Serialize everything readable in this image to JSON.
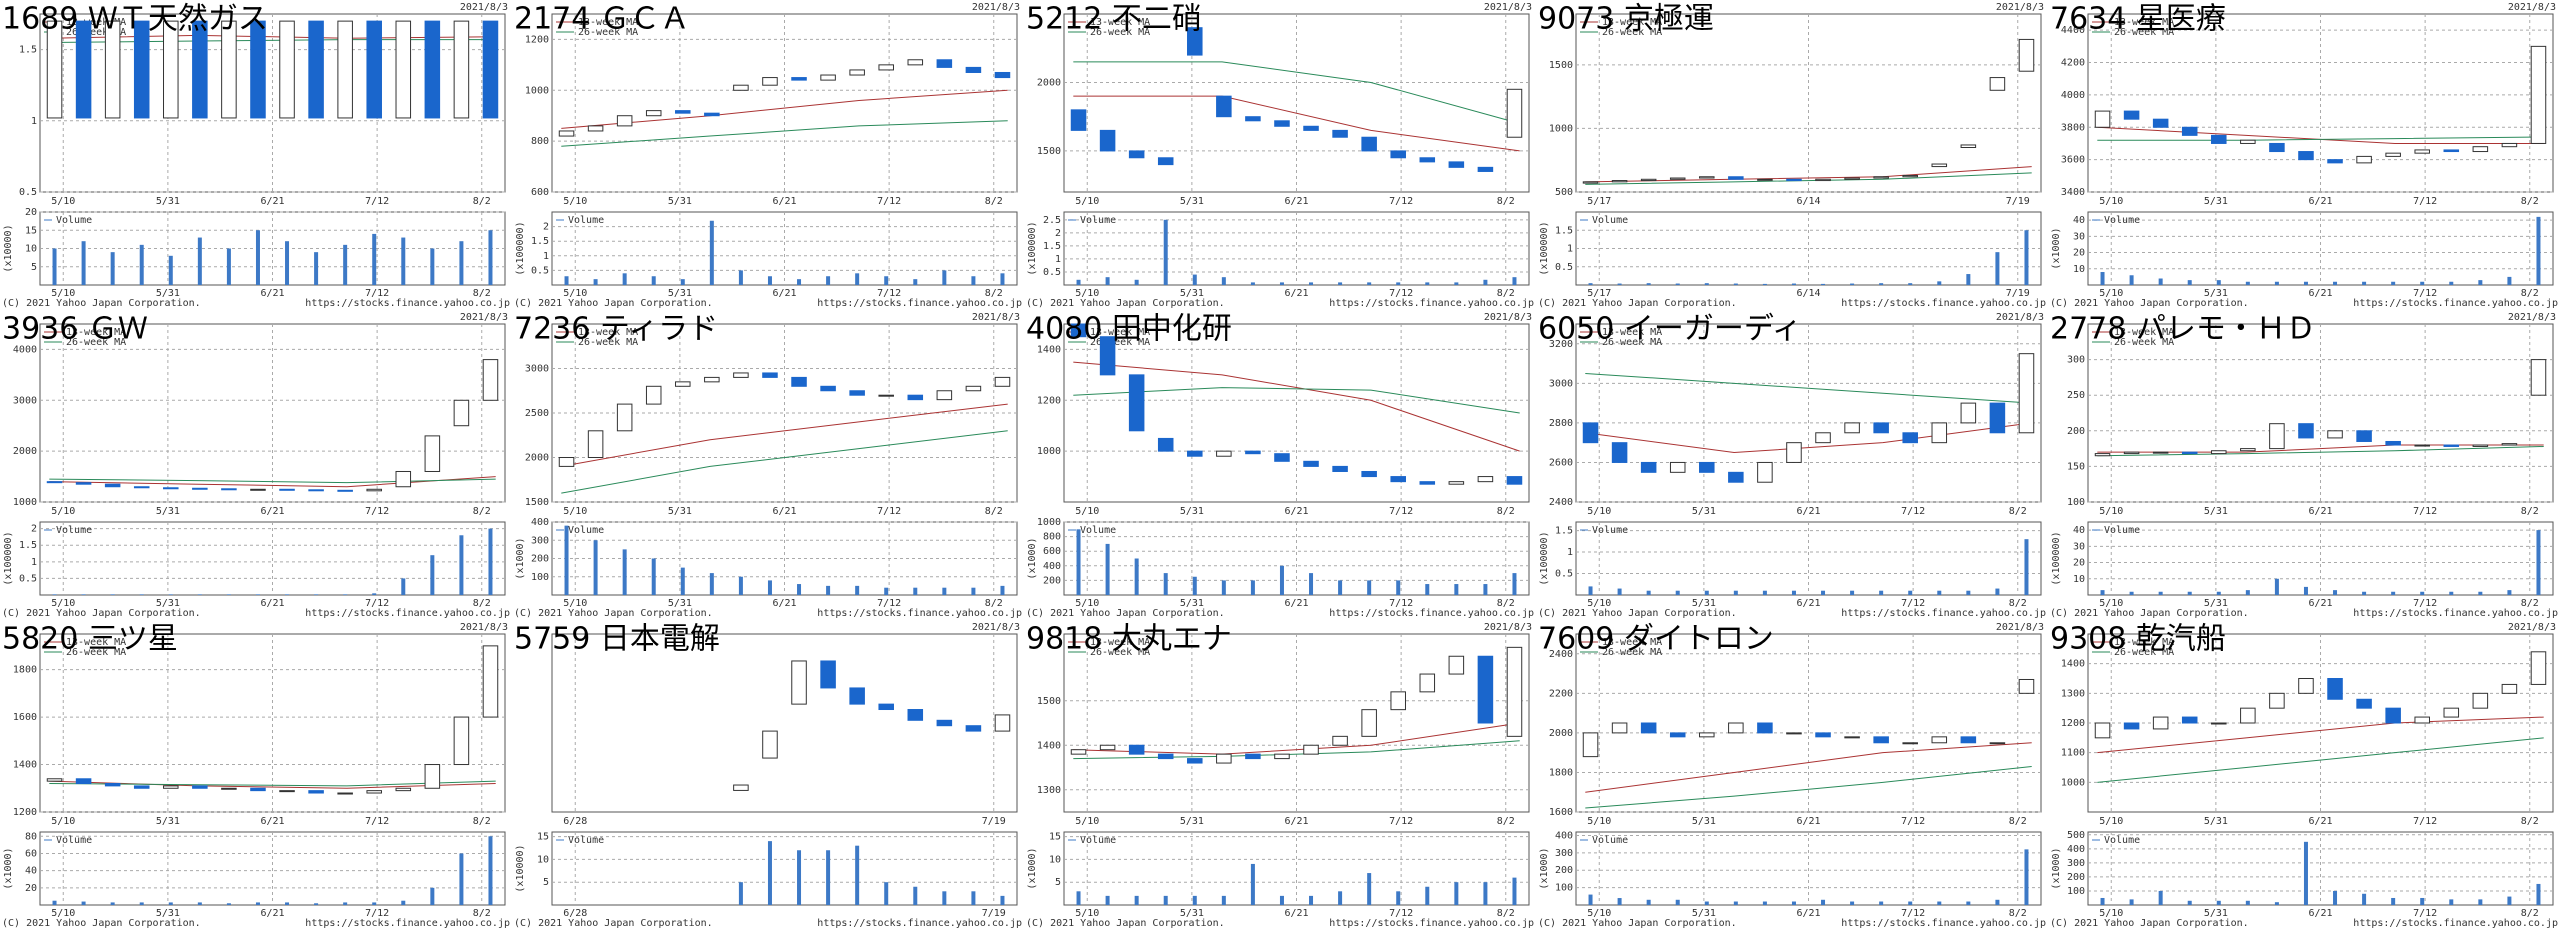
{
  "date": "2021/8/3",
  "copyright": "(C) 2021 Yahoo Japan Corporation.",
  "source": "https://stocks.finance.yahoo.co.jp",
  "legend": [
    "13-week MA",
    "26-week MA",
    "Volume"
  ],
  "chart_data": [
    {
      "type": "candlestick",
      "title": "1689 ＷＴ天然ガス",
      "x_labels": [
        "5/10",
        "5/31",
        "6/21",
        "7/12",
        "8/2"
      ],
      "ylim": [
        0.5,
        1.75
      ],
      "yticks": [
        0.5,
        1,
        1.5
      ],
      "open": [
        1.02,
        1.7,
        1.02,
        1.7,
        1.02,
        1.7,
        1.02,
        1.7,
        1.02,
        1.7,
        1.02,
        1.7,
        1.02,
        1.7,
        1.02,
        1.7
      ],
      "close": [
        1.7,
        1.02,
        1.7,
        1.02,
        1.7,
        1.02,
        1.7,
        1.02,
        1.7,
        1.02,
        1.7,
        1.02,
        1.7,
        1.02,
        1.7,
        1.02
      ],
      "ma13": [
        1.58,
        1.6,
        1.58,
        1.59
      ],
      "ma26": [
        1.55,
        1.56,
        1.57,
        1.57
      ],
      "vunit": "(x10000)",
      "vlim": [
        0,
        20
      ],
      "vticks": [
        5,
        10,
        15,
        20
      ],
      "volume": [
        10,
        12,
        9,
        11,
        8,
        13,
        10,
        15,
        12,
        9,
        11,
        14,
        13,
        10,
        12,
        15
      ]
    },
    {
      "type": "candlestick",
      "title": "2174 ＧＣＡ",
      "x_labels": [
        "5/10",
        "5/31",
        "6/21",
        "7/12",
        "8/2"
      ],
      "ylim": [
        600,
        1300
      ],
      "yticks": [
        600,
        800,
        1000,
        1200
      ],
      "open": [
        820,
        840,
        860,
        900,
        920,
        910,
        1000,
        1020,
        1050,
        1040,
        1060,
        1080,
        1100,
        1120,
        1090,
        1070
      ],
      "close": [
        840,
        860,
        900,
        920,
        910,
        900,
        1020,
        1050,
        1040,
        1060,
        1080,
        1100,
        1120,
        1090,
        1070,
        1050
      ],
      "ma13": [
        850,
        900,
        960,
        1000
      ],
      "ma26": [
        780,
        820,
        860,
        880
      ],
      "vunit": "(x100000)",
      "vlim": [
        0,
        2.5
      ],
      "vticks": [
        0.5,
        1,
        1.5,
        2
      ],
      "volume": [
        0.3,
        0.2,
        0.4,
        0.3,
        0.2,
        2.2,
        0.5,
        0.3,
        0.2,
        0.3,
        0.4,
        0.3,
        0.2,
        0.5,
        0.3,
        0.4
      ]
    },
    {
      "type": "candlestick",
      "title": "5212 不二硝",
      "x_labels": [
        "5/10",
        "5/31",
        "6/21",
        "7/12",
        "8/2"
      ],
      "ylim": [
        1200,
        2500
      ],
      "yticks": [
        1500,
        2000
      ],
      "open": [
        1800,
        1650,
        1500,
        1450,
        2400,
        1900,
        1750,
        1720,
        1680,
        1650,
        1600,
        1500,
        1450,
        1420,
        1380,
        1600
      ],
      "close": [
        1650,
        1500,
        1450,
        1400,
        2200,
        1750,
        1720,
        1680,
        1650,
        1600,
        1500,
        1450,
        1420,
        1380,
        1350,
        1950
      ],
      "ma13": [
        1900,
        1900,
        1650,
        1500
      ],
      "ma26": [
        2150,
        2150,
        2000,
        1700
      ],
      "vunit": "(x100000)",
      "vlim": [
        0,
        2.8
      ],
      "vticks": [
        0.5,
        1,
        1.5,
        2,
        2.5
      ],
      "volume": [
        0.2,
        0.3,
        0.2,
        2.5,
        0.4,
        0.3,
        0.1,
        0.1,
        0.1,
        0.1,
        0.1,
        0.1,
        0.1,
        0.1,
        0.2,
        0.3
      ]
    },
    {
      "type": "candlestick",
      "title": "9073 京極運",
      "x_labels": [
        "5/17",
        "6/14",
        "7/19"
      ],
      "ylim": [
        500,
        1900
      ],
      "yticks": [
        500,
        1000,
        1500
      ],
      "open": [
        570,
        580,
        590,
        600,
        610,
        620,
        600,
        600,
        590,
        600,
        610,
        620,
        700,
        850,
        1300,
        1450
      ],
      "close": [
        580,
        590,
        600,
        610,
        620,
        600,
        600,
        590,
        600,
        610,
        620,
        630,
        720,
        870,
        1400,
        1700
      ],
      "ma13": [
        580,
        600,
        620,
        700
      ],
      "ma26": [
        560,
        580,
        600,
        650
      ],
      "vunit": "(x100000)",
      "vlim": [
        0,
        2
      ],
      "vticks": [
        0.5,
        1,
        1.5
      ],
      "volume": [
        0.05,
        0.04,
        0.05,
        0.04,
        0.05,
        0.04,
        0.03,
        0.04,
        0.03,
        0.04,
        0.05,
        0.05,
        0.1,
        0.3,
        0.9,
        1.5
      ]
    },
    {
      "type": "candlestick",
      "title": "7634 星医療",
      "x_labels": [
        "5/10",
        "5/31",
        "6/21",
        "7/12",
        "8/2"
      ],
      "ylim": [
        3400,
        4500
      ],
      "yticks": [
        3400,
        3600,
        3800,
        4000,
        4200,
        4400
      ],
      "open": [
        3800,
        3900,
        3850,
        3800,
        3750,
        3700,
        3700,
        3650,
        3600,
        3580,
        3620,
        3640,
        3660,
        3650,
        3680,
        3700
      ],
      "close": [
        3900,
        3850,
        3800,
        3750,
        3700,
        3720,
        3650,
        3600,
        3580,
        3620,
        3640,
        3660,
        3650,
        3680,
        3700,
        4300
      ],
      "ma13": [
        3800,
        3750,
        3700,
        3700
      ],
      "ma26": [
        3720,
        3720,
        3730,
        3740
      ],
      "vunit": "(x1000)",
      "vlim": [
        0,
        45
      ],
      "vticks": [
        10,
        20,
        30,
        40
      ],
      "volume": [
        8,
        6,
        4,
        3,
        3,
        2,
        2,
        2,
        2,
        2,
        2,
        2,
        2,
        3,
        5,
        42
      ]
    },
    {
      "type": "candlestick",
      "title": "3936 ＧＷ",
      "x_labels": [
        "5/10",
        "5/31",
        "6/21",
        "7/12",
        "8/2"
      ],
      "ylim": [
        1000,
        4500
      ],
      "yticks": [
        1000,
        2000,
        3000,
        4000
      ],
      "open": [
        1400,
        1380,
        1350,
        1300,
        1280,
        1270,
        1260,
        1250,
        1250,
        1240,
        1230,
        1220,
        1300,
        1600,
        2500,
        3000
      ],
      "close": [
        1380,
        1350,
        1300,
        1280,
        1270,
        1260,
        1250,
        1250,
        1240,
        1230,
        1220,
        1250,
        1600,
        2300,
        3000,
        3800
      ],
      "ma13": [
        1400,
        1350,
        1300,
        1500
      ],
      "ma26": [
        1450,
        1420,
        1380,
        1450
      ],
      "vunit": "(x100000)",
      "vlim": [
        0,
        2.2
      ],
      "vticks": [
        0.5,
        1,
        1.5,
        2
      ],
      "volume": [
        0.02,
        0.02,
        0.02,
        0.02,
        0.02,
        0.02,
        0.02,
        0.02,
        0.02,
        0.02,
        0.02,
        0.05,
        0.5,
        1.2,
        1.8,
        2
      ]
    },
    {
      "type": "candlestick",
      "title": "7236 ティラド",
      "x_labels": [
        "5/10",
        "5/31",
        "6/21",
        "7/12",
        "8/2"
      ],
      "ylim": [
        1500,
        3500
      ],
      "yticks": [
        1500,
        2000,
        2500,
        3000
      ],
      "open": [
        1900,
        2000,
        2300,
        2600,
        2800,
        2850,
        2900,
        2950,
        2900,
        2800,
        2750,
        2700,
        2700,
        2650,
        2750,
        2800
      ],
      "close": [
        2000,
        2300,
        2600,
        2800,
        2850,
        2900,
        2950,
        2900,
        2800,
        2750,
        2700,
        2700,
        2650,
        2750,
        2800,
        2900
      ],
      "ma13": [
        1900,
        2200,
        2400,
        2600
      ],
      "ma26": [
        1600,
        1900,
        2100,
        2300
      ],
      "vunit": "(x1000)",
      "vlim": [
        0,
        400
      ],
      "vticks": [
        100,
        200,
        300,
        400
      ],
      "volume": [
        380,
        300,
        250,
        200,
        150,
        120,
        100,
        80,
        60,
        50,
        50,
        40,
        40,
        40,
        40,
        50
      ]
    },
    {
      "type": "candlestick",
      "title": "4080 田中化研",
      "x_labels": [
        "5/10",
        "5/31",
        "6/21",
        "7/12",
        "8/2"
      ],
      "ylim": [
        800,
        1500
      ],
      "yticks": [
        1000,
        1200,
        1400
      ],
      "open": [
        1500,
        1450,
        1300,
        1050,
        1000,
        980,
        1000,
        990,
        960,
        940,
        920,
        900,
        880,
        870,
        880,
        900
      ],
      "close": [
        1450,
        1300,
        1080,
        1000,
        980,
        1000,
        990,
        960,
        940,
        920,
        900,
        880,
        870,
        880,
        900,
        870
      ],
      "ma13": [
        1350,
        1300,
        1200,
        1000
      ],
      "ma26": [
        1220,
        1250,
        1240,
        1150
      ],
      "vunit": "(x1000)",
      "vlim": [
        0,
        1000
      ],
      "vticks": [
        200,
        400,
        600,
        800,
        1000
      ],
      "volume": [
        900,
        700,
        500,
        300,
        250,
        200,
        200,
        400,
        300,
        200,
        200,
        200,
        150,
        150,
        150,
        300
      ]
    },
    {
      "type": "candlestick",
      "title": "6050 イーガーディ",
      "x_labels": [
        "5/10",
        "5/31",
        "6/21",
        "7/12",
        "8/2"
      ],
      "ylim": [
        2400,
        3300
      ],
      "yticks": [
        2400,
        2600,
        2800,
        3000,
        3200
      ],
      "open": [
        2800,
        2700,
        2600,
        2550,
        2600,
        2550,
        2500,
        2600,
        2700,
        2750,
        2800,
        2750,
        2700,
        2800,
        2900,
        2750
      ],
      "close": [
        2700,
        2600,
        2550,
        2600,
        2550,
        2500,
        2600,
        2700,
        2750,
        2800,
        2750,
        2700,
        2800,
        2900,
        2750,
        3150
      ],
      "ma13": [
        2750,
        2650,
        2700,
        2800
      ],
      "ma26": [
        3050,
        3000,
        2950,
        2900
      ],
      "vunit": "(x100000)",
      "vlim": [
        0,
        1.7
      ],
      "vticks": [
        0.5,
        1,
        1.5
      ],
      "volume": [
        0.2,
        0.15,
        0.1,
        0.1,
        0.1,
        0.1,
        0.1,
        0.1,
        0.1,
        0.1,
        0.1,
        0.1,
        0.1,
        0.1,
        0.15,
        1.3
      ]
    },
    {
      "type": "candlestick",
      "title": "2778 パレモ・ＨＤ",
      "x_labels": [
        "5/10",
        "5/31",
        "6/21",
        "7/12",
        "8/2"
      ],
      "ylim": [
        100,
        350
      ],
      "yticks": [
        100,
        150,
        200,
        250,
        300
      ],
      "open": [
        165,
        168,
        170,
        170,
        168,
        172,
        175,
        210,
        190,
        200,
        185,
        180,
        180,
        178,
        180,
        250
      ],
      "close": [
        168,
        170,
        170,
        168,
        172,
        175,
        210,
        190,
        200,
        185,
        180,
        180,
        178,
        180,
        182,
        300
      ],
      "ma13": [
        170,
        170,
        180,
        180
      ],
      "ma26": [
        165,
        168,
        172,
        178
      ],
      "vunit": "(x100000)",
      "vlim": [
        0,
        45
      ],
      "vticks": [
        10,
        20,
        30,
        40
      ],
      "volume": [
        3,
        2,
        2,
        2,
        2,
        3,
        10,
        5,
        3,
        2,
        2,
        2,
        2,
        2,
        3,
        40
      ]
    },
    {
      "type": "candlestick",
      "title": "5820 三ツ星",
      "x_labels": [
        "5/10",
        "5/31",
        "6/21",
        "7/12",
        "8/2"
      ],
      "ylim": [
        1200,
        1950
      ],
      "yticks": [
        1200,
        1400,
        1600,
        1800
      ],
      "open": [
        1330,
        1340,
        1320,
        1310,
        1300,
        1310,
        1300,
        1300,
        1290,
        1290,
        1280,
        1280,
        1290,
        1300,
        1400,
        1600
      ],
      "close": [
        1340,
        1320,
        1310,
        1300,
        1310,
        1300,
        1300,
        1290,
        1290,
        1280,
        1280,
        1290,
        1300,
        1400,
        1600,
        1900
      ],
      "ma13": [
        1330,
        1310,
        1300,
        1320
      ],
      "ma26": [
        1320,
        1315,
        1310,
        1330
      ],
      "vunit": "(x1000)",
      "vlim": [
        0,
        85
      ],
      "vticks": [
        20,
        40,
        60,
        80
      ],
      "volume": [
        5,
        4,
        3,
        3,
        3,
        3,
        2,
        3,
        3,
        2,
        3,
        3,
        5,
        20,
        60,
        80
      ]
    },
    {
      "type": "candlestick",
      "title": "5759 日本電解",
      "x_labels": [
        "6/28",
        "7/19"
      ],
      "ylim": [
        1500,
        4800
      ],
      "yticks": [],
      "open": [
        null,
        null,
        null,
        null,
        null,
        null,
        1900,
        2500,
        3500,
        4300,
        3800,
        3500,
        3400,
        3200,
        3100,
        3000
      ],
      "close": [
        null,
        null,
        null,
        null,
        null,
        null,
        2000,
        3000,
        4300,
        3800,
        3500,
        3400,
        3200,
        3100,
        3000,
        3300
      ],
      "vunit": "(x10000)",
      "vlim": [
        0,
        16
      ],
      "vticks": [
        5,
        10,
        15
      ],
      "volume": [
        null,
        null,
        null,
        null,
        null,
        null,
        5,
        14,
        12,
        12,
        13,
        5,
        4,
        3,
        3,
        2
      ]
    },
    {
      "type": "candlestick",
      "title": "9818 大丸エナ",
      "x_labels": [
        "5/10",
        "5/31",
        "6/21",
        "7/12",
        "8/2"
      ],
      "ylim": [
        1250,
        1650
      ],
      "yticks": [
        1300,
        1400,
        1500
      ],
      "open": [
        1380,
        1390,
        1400,
        1380,
        1370,
        1360,
        1380,
        1370,
        1380,
        1400,
        1420,
        1480,
        1520,
        1560,
        1600,
        1420
      ],
      "close": [
        1390,
        1400,
        1380,
        1370,
        1360,
        1380,
        1370,
        1380,
        1400,
        1420,
        1480,
        1520,
        1560,
        1600,
        1450,
        1620
      ],
      "ma13": [
        1390,
        1380,
        1400,
        1450
      ],
      "ma26": [
        1370,
        1375,
        1385,
        1410
      ],
      "vunit": "(x1000)",
      "vlim": [
        0,
        16
      ],
      "vticks": [
        5,
        10,
        15
      ],
      "volume": [
        3,
        2,
        2,
        2,
        2,
        2,
        9,
        2,
        2,
        3,
        7,
        3,
        4,
        5,
        5,
        6
      ]
    },
    {
      "type": "candlestick",
      "title": "7609 ダイトロン",
      "x_labels": [
        "5/10",
        "5/31",
        "6/21",
        "7/12",
        "8/2"
      ],
      "ylim": [
        1600,
        2500
      ],
      "yticks": [
        1600,
        1800,
        2000,
        2200,
        2400
      ],
      "open": [
        1880,
        2000,
        2050,
        2000,
        1980,
        2000,
        2050,
        2000,
        2000,
        1980,
        1980,
        1950,
        1950,
        1980,
        1950,
        2200
      ],
      "close": [
        2000,
        2050,
        2000,
        1980,
        2000,
        2050,
        2000,
        2000,
        1980,
        1980,
        1950,
        1950,
        1980,
        1950,
        1950,
        2270
      ],
      "ma13": [
        1700,
        1800,
        1900,
        1950
      ],
      "ma26": [
        1620,
        1680,
        1750,
        1830
      ],
      "vunit": "(x1000)",
      "vlim": [
        0,
        420
      ],
      "vticks": [
        100,
        200,
        300,
        400
      ],
      "volume": [
        60,
        40,
        30,
        30,
        20,
        20,
        20,
        20,
        30,
        20,
        20,
        20,
        20,
        20,
        30,
        320
      ]
    },
    {
      "type": "candlestick",
      "title": "9308 乾汽船",
      "x_labels": [
        "5/10",
        "5/31",
        "6/21",
        "7/12",
        "8/2"
      ],
      "ylim": [
        900,
        1500
      ],
      "yticks": [
        1000,
        1100,
        1200,
        1300,
        1400
      ],
      "open": [
        1150,
        1200,
        1180,
        1220,
        1200,
        1200,
        1250,
        1300,
        1350,
        1280,
        1250,
        1200,
        1220,
        1250,
        1300,
        1330
      ],
      "close": [
        1200,
        1180,
        1220,
        1200,
        1200,
        1250,
        1300,
        1350,
        1280,
        1250,
        1200,
        1220,
        1250,
        1300,
        1330,
        1440
      ],
      "ma13": [
        1100,
        1150,
        1200,
        1220
      ],
      "ma26": [
        1000,
        1050,
        1100,
        1150
      ],
      "vunit": "(x1000)",
      "vlim": [
        0,
        520
      ],
      "vticks": [
        100,
        200,
        300,
        400,
        500
      ],
      "volume": [
        50,
        40,
        100,
        30,
        30,
        30,
        20,
        450,
        100,
        80,
        50,
        50,
        40,
        40,
        60,
        150
      ]
    }
  ]
}
